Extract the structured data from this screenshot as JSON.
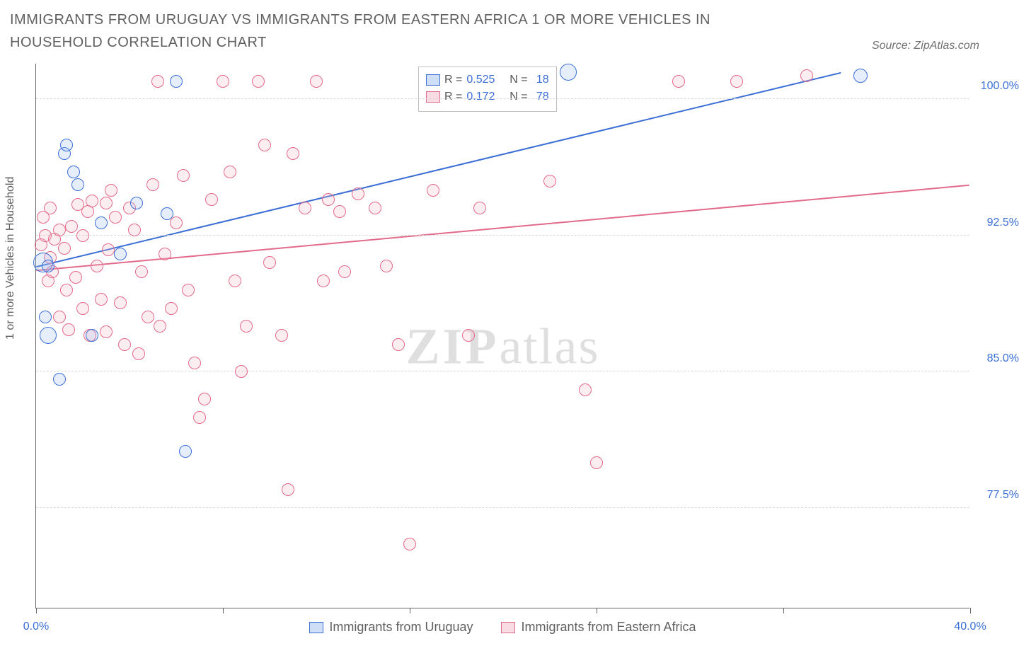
{
  "title": "IMMIGRANTS FROM URUGUAY VS IMMIGRANTS FROM EASTERN AFRICA 1 OR MORE VEHICLES IN HOUSEHOLD CORRELATION CHART",
  "source_label": "Source: ZipAtlas.com",
  "watermark": {
    "bold": "ZIP",
    "light": "atlas"
  },
  "ylabel": "1 or more Vehicles in Household",
  "chart": {
    "type": "scatter",
    "background_color": "#ffffff",
    "grid_color": "#d8d8d8",
    "axis_color": "#666666",
    "label_color": "#3b6fd6",
    "text_color": "#606060",
    "label_fontsize": 16,
    "title_fontsize": 20,
    "xlim": [
      0.0,
      40.0
    ],
    "ylim": [
      72.0,
      102.0
    ],
    "x_ticks": [
      0.0,
      8.0,
      16.0,
      24.0,
      32.0,
      40.0
    ],
    "x_tick_labels": [
      "0.0%",
      "",
      "",
      "",
      "",
      "40.0%"
    ],
    "y_ticks": [
      77.5,
      85.0,
      92.5,
      100.0
    ],
    "y_tick_labels": [
      "77.5%",
      "85.0%",
      "92.5%",
      "100.0%"
    ],
    "marker_radius": 9,
    "marker_stroke_width": 1.5,
    "marker_fill_opacity": 0.25,
    "trend_line_width": 2
  },
  "series": {
    "uruguay": {
      "label": "Immigrants from Uruguay",
      "color_stroke": "#3b6fd6",
      "color_fill": "#9fbdf0",
      "R": "0.525",
      "N": "18",
      "trend": {
        "x1": 0.0,
        "y1": 90.8,
        "x2": 34.5,
        "y2": 101.5
      },
      "points": [
        {
          "x": 0.3,
          "y": 91.0,
          "r": 14
        },
        {
          "x": 0.5,
          "y": 90.8,
          "r": 9
        },
        {
          "x": 0.5,
          "y": 87.0,
          "r": 12
        },
        {
          "x": 1.2,
          "y": 97.0,
          "r": 9
        },
        {
          "x": 1.3,
          "y": 97.5,
          "r": 9
        },
        {
          "x": 1.6,
          "y": 96.0,
          "r": 9
        },
        {
          "x": 1.8,
          "y": 95.3,
          "r": 9
        },
        {
          "x": 1.0,
          "y": 84.6,
          "r": 9
        },
        {
          "x": 2.4,
          "y": 87.0,
          "r": 9
        },
        {
          "x": 2.8,
          "y": 93.2,
          "r": 9
        },
        {
          "x": 3.6,
          "y": 91.5,
          "r": 9
        },
        {
          "x": 4.3,
          "y": 94.3,
          "r": 9
        },
        {
          "x": 5.6,
          "y": 93.7,
          "r": 9
        },
        {
          "x": 6.4,
          "y": 80.6,
          "r": 9
        },
        {
          "x": 6.0,
          "y": 101.0,
          "r": 9
        },
        {
          "x": 22.8,
          "y": 101.5,
          "r": 12
        },
        {
          "x": 35.3,
          "y": 101.3,
          "r": 10
        },
        {
          "x": 0.4,
          "y": 88.0,
          "r": 9
        }
      ]
    },
    "eastern_africa": {
      "label": "Immigrants from Eastern Africa",
      "color_stroke": "#e26a8b",
      "color_fill": "#f3b9c8",
      "R": "0.172",
      "N": "78",
      "trend": {
        "x1": 0.0,
        "y1": 90.6,
        "x2": 40.0,
        "y2": 95.3
      },
      "points": [
        {
          "x": 0.2,
          "y": 92.0
        },
        {
          "x": 0.4,
          "y": 92.5
        },
        {
          "x": 0.6,
          "y": 91.3
        },
        {
          "x": 0.8,
          "y": 92.3
        },
        {
          "x": 0.5,
          "y": 90.0
        },
        {
          "x": 0.7,
          "y": 90.5
        },
        {
          "x": 0.3,
          "y": 93.5
        },
        {
          "x": 1.0,
          "y": 92.8
        },
        {
          "x": 1.2,
          "y": 91.8
        },
        {
          "x": 1.5,
          "y": 93.0
        },
        {
          "x": 1.3,
          "y": 89.5
        },
        {
          "x": 1.7,
          "y": 90.2
        },
        {
          "x": 1.0,
          "y": 88.0
        },
        {
          "x": 1.4,
          "y": 87.3
        },
        {
          "x": 2.0,
          "y": 92.5
        },
        {
          "x": 2.2,
          "y": 93.8
        },
        {
          "x": 2.4,
          "y": 94.4
        },
        {
          "x": 2.6,
          "y": 90.8
        },
        {
          "x": 2.0,
          "y": 88.5
        },
        {
          "x": 2.8,
          "y": 89.0
        },
        {
          "x": 3.0,
          "y": 94.3
        },
        {
          "x": 3.2,
          "y": 95.0
        },
        {
          "x": 3.4,
          "y": 93.5
        },
        {
          "x": 3.1,
          "y": 91.7
        },
        {
          "x": 3.6,
          "y": 88.8
        },
        {
          "x": 3.8,
          "y": 86.5
        },
        {
          "x": 3.0,
          "y": 87.2
        },
        {
          "x": 4.0,
          "y": 94.0
        },
        {
          "x": 4.2,
          "y": 92.8
        },
        {
          "x": 4.5,
          "y": 90.5
        },
        {
          "x": 4.8,
          "y": 88.0
        },
        {
          "x": 5.0,
          "y": 95.3
        },
        {
          "x": 5.2,
          "y": 101.0
        },
        {
          "x": 5.5,
          "y": 91.5
        },
        {
          "x": 5.3,
          "y": 87.5
        },
        {
          "x": 6.0,
          "y": 93.2
        },
        {
          "x": 6.3,
          "y": 95.8
        },
        {
          "x": 6.5,
          "y": 89.5
        },
        {
          "x": 6.8,
          "y": 85.5
        },
        {
          "x": 7.0,
          "y": 82.5
        },
        {
          "x": 7.2,
          "y": 83.5
        },
        {
          "x": 7.5,
          "y": 94.5
        },
        {
          "x": 8.0,
          "y": 101.0
        },
        {
          "x": 8.3,
          "y": 96.0
        },
        {
          "x": 8.5,
          "y": 90.0
        },
        {
          "x": 8.8,
          "y": 85.0
        },
        {
          "x": 9.0,
          "y": 87.5
        },
        {
          "x": 9.5,
          "y": 101.0
        },
        {
          "x": 9.8,
          "y": 97.5
        },
        {
          "x": 10.0,
          "y": 91.0
        },
        {
          "x": 10.5,
          "y": 87.0
        },
        {
          "x": 10.8,
          "y": 78.5
        },
        {
          "x": 11.0,
          "y": 97.0
        },
        {
          "x": 11.5,
          "y": 94.0
        },
        {
          "x": 12.0,
          "y": 101.0
        },
        {
          "x": 12.5,
          "y": 94.5
        },
        {
          "x": 12.3,
          "y": 90.0
        },
        {
          "x": 13.0,
          "y": 93.8
        },
        {
          "x": 13.2,
          "y": 90.5
        },
        {
          "x": 13.8,
          "y": 94.8
        },
        {
          "x": 14.5,
          "y": 94.0
        },
        {
          "x": 15.0,
          "y": 90.8
        },
        {
          "x": 15.5,
          "y": 86.5
        },
        {
          "x": 16.0,
          "y": 75.5
        },
        {
          "x": 17.0,
          "y": 95.0
        },
        {
          "x": 18.5,
          "y": 87.0
        },
        {
          "x": 19.0,
          "y": 94.0
        },
        {
          "x": 22.0,
          "y": 95.5
        },
        {
          "x": 23.5,
          "y": 84.0
        },
        {
          "x": 24.0,
          "y": 80.0
        },
        {
          "x": 27.5,
          "y": 101.0
        },
        {
          "x": 30.0,
          "y": 101.0
        },
        {
          "x": 33.0,
          "y": 101.3
        },
        {
          "x": 0.6,
          "y": 94.0
        },
        {
          "x": 1.8,
          "y": 94.2
        },
        {
          "x": 2.3,
          "y": 87.0
        },
        {
          "x": 4.4,
          "y": 86.0
        },
        {
          "x": 5.8,
          "y": 88.5
        }
      ]
    }
  },
  "legend_text": {
    "R_label": "R =",
    "N_label": "N ="
  }
}
